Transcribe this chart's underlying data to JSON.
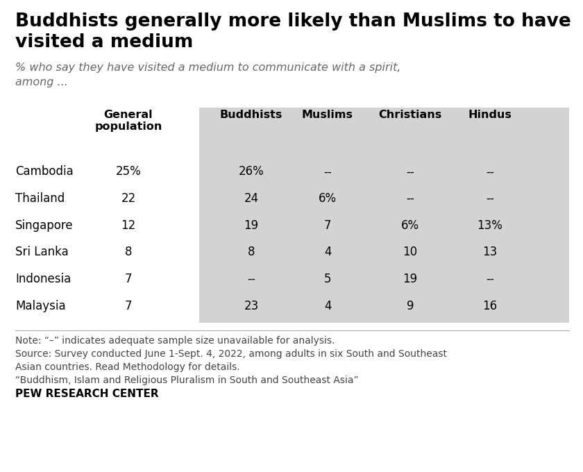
{
  "title_line1": "Buddhists generally more likely than Muslims to have",
  "title_line2": "visited a medium",
  "subtitle": "% who say they have visited a medium to communicate with a spirit,\namong ...",
  "col_headers": [
    "General\npopulation",
    "Buddhists",
    "Muslims",
    "Christians",
    "Hindus"
  ],
  "row_labels": [
    "Cambodia",
    "Thailand",
    "Singapore",
    "Sri Lanka",
    "Indonesia",
    "Malaysia"
  ],
  "gen_pop": [
    "25%",
    "22",
    "12",
    "8",
    "7",
    "7"
  ],
  "buddhists": [
    "26%",
    "24",
    "19",
    "8",
    "--",
    "23"
  ],
  "muslims": [
    "--",
    "6%",
    "7",
    "4",
    "5",
    "4"
  ],
  "christians": [
    "--",
    "--",
    "6%",
    "10",
    "19",
    "9"
  ],
  "hindus": [
    "--",
    "--",
    "13%",
    "13",
    "--",
    "16"
  ],
  "note_line1": "Note: “–” indicates adequate sample size unavailable for analysis.",
  "note_line2": "Source: Survey conducted June 1-Sept. 4, 2022, among adults in six South and Southeast",
  "note_line3": "Asian countries. Read Methodology for details.",
  "note_line4": "“Buddhism, Islam and Religious Pluralism in South and Southeast Asia”",
  "note_line5": "PEW RESEARCH CENTER",
  "bg_color": "#d3d3d3",
  "white_bg": "#ffffff",
  "text_color": "#000000",
  "note_color": "#444444",
  "subtitle_color": "#666666"
}
